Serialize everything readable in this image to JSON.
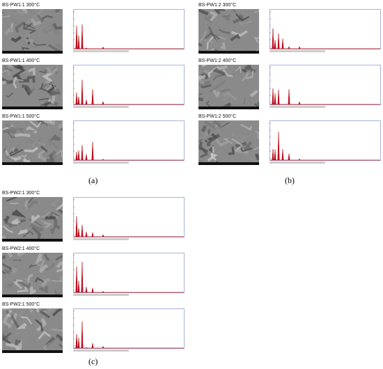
{
  "panels": [
    {
      "label": "(a)",
      "rows": [
        {
          "title": "BS-PW1:1 300°C"
        },
        {
          "title": "BS-PW1:1 400°C"
        },
        {
          "title": "BS-PW1:1 500°C"
        }
      ]
    },
    {
      "label": "(b)",
      "rows": [
        {
          "title": "BS-PW1:2 300°C"
        },
        {
          "title": "BS-PW1:2 400°C"
        },
        {
          "title": "BS-PW1:2 500°C"
        }
      ]
    },
    {
      "label": "(c)",
      "rows": [
        {
          "title": "BS-PW2:1 300°C"
        },
        {
          "title": "BS-PW2:1 400°C"
        },
        {
          "title": "BS-PW2:1 500°C"
        }
      ]
    }
  ]
}
